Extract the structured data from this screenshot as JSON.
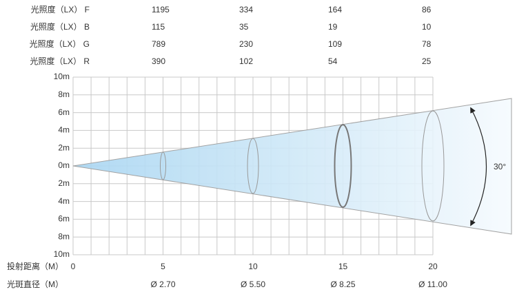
{
  "table": {
    "rows": [
      {
        "label": "光照度（LX） F",
        "values": [
          1195,
          334,
          164,
          86
        ]
      },
      {
        "label": "光照度（LX） B",
        "values": [
          115,
          35,
          19,
          10
        ]
      },
      {
        "label": "光照度（LX） G",
        "values": [
          789,
          230,
          109,
          78
        ]
      },
      {
        "label": "光照度（LX） R",
        "values": [
          390,
          102,
          54,
          25
        ]
      }
    ]
  },
  "diagram": {
    "y_labels": [
      "10m",
      "8m",
      "6m",
      "4m",
      "2m",
      "0m",
      "2m",
      "4m",
      "6m",
      "8m",
      "10m"
    ],
    "distance_label": "投射距离（M）",
    "distances": [
      0,
      5,
      10,
      15,
      20
    ],
    "diameter_label": "光斑直径（M）",
    "diameters": [
      "Ø 2.70",
      "Ø 5.50",
      "Ø 8.25",
      "Ø 11.00"
    ],
    "angle": "30°"
  }
}
